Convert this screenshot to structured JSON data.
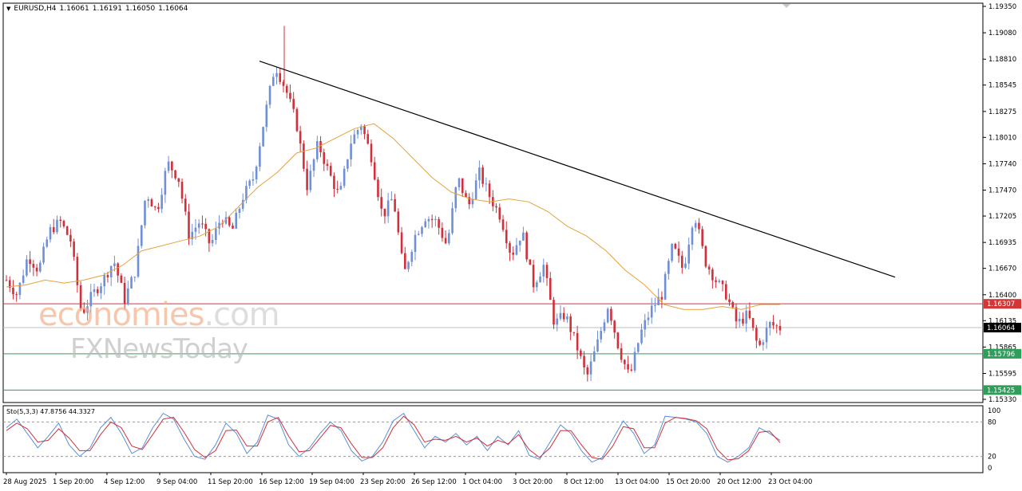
{
  "header": {
    "symbol": "EURUSD,H4",
    "open": "1.16061",
    "high": "1.16191",
    "low": "1.16050",
    "close": "1.16064"
  },
  "watermark": {
    "brand1_main": "economies",
    "brand1_suffix": ".com",
    "brand2": "FXNewsToday"
  },
  "oscillator": {
    "label": "Sto(5,3,3) 47.8756 44.3327",
    "levels": [
      "100",
      "80",
      "20",
      "0"
    ]
  },
  "colors": {
    "bull": "#6f8fd6",
    "bear": "#d1303a",
    "ma": "#e6a23c",
    "trendline": "#000000",
    "resistance": "#d33636",
    "support": "#2e9e5a",
    "stoch_main": "#5b8fd9",
    "stoch_signal": "#d1303a",
    "current": "#000000"
  },
  "chart_data": {
    "type": "candlestick",
    "title": "EURUSD,H4",
    "ylim": [
      1.1533,
      1.1935
    ],
    "y_ticks": [
      "1.19350",
      "1.19080",
      "1.18810",
      "1.18545",
      "1.18275",
      "1.18010",
      "1.17740",
      "1.17470",
      "1.17205",
      "1.16935",
      "1.16670",
      "1.16400",
      "1.16135",
      "1.15865",
      "1.15595",
      "1.15330"
    ],
    "x_labels": [
      "28 Aug 2025",
      "1 Sep 20:00",
      "4 Sep 12:00",
      "9 Sep 04:00",
      "11 Sep 20:00",
      "16 Sep 12:00",
      "19 Sep 04:00",
      "23 Sep 20:00",
      "26 Sep 12:00",
      "1 Oct 04:00",
      "3 Oct 20:00",
      "8 Oct 12:00",
      "13 Oct 04:00",
      "15 Oct 20:00",
      "20 Oct 12:00",
      "23 Oct 04:00"
    ],
    "price_labels": {
      "resistance": "1.16307",
      "current": "1.16064",
      "support1": "1.15796",
      "support2": "1.15425"
    },
    "levels": {
      "resistance": 1.16307,
      "current": 1.16064,
      "support1": 1.15796,
      "support2": 1.15425
    },
    "trendline": [
      {
        "t": 0,
        "price": 1.1879
      },
      {
        "t": 1,
        "price": 1.1658
      }
    ],
    "price_path": [
      1.1655,
      1.164,
      1.168,
      1.1665,
      1.1705,
      1.1715,
      1.1695,
      1.162,
      1.164,
      1.1655,
      1.1675,
      1.1635,
      1.1665,
      1.1745,
      1.1725,
      1.1775,
      1.176,
      1.17,
      1.1715,
      1.169,
      1.172,
      1.1705,
      1.174,
      1.176,
      1.182,
      1.1875,
      1.185,
      1.1815,
      1.175,
      1.1795,
      1.1765,
      1.174,
      1.1795,
      1.1815,
      1.178,
      1.172,
      1.174,
      1.166,
      1.17,
      1.172,
      1.1715,
      1.169,
      1.176,
      1.173,
      1.1765,
      1.174,
      1.172,
      1.168,
      1.1705,
      1.165,
      1.167,
      1.161,
      1.162,
      1.159,
      1.1555,
      1.159,
      1.163,
      1.1585,
      1.1555,
      1.16,
      1.1625,
      1.164,
      1.169,
      1.1665,
      1.1725,
      1.1675,
      1.1655,
      1.164,
      1.161,
      1.162,
      1.1585,
      1.161,
      1.1606
    ],
    "ma_path": [
      1.1648,
      1.165,
      1.1655,
      1.1652,
      1.1655,
      1.166,
      1.167,
      1.1685,
      1.169,
      1.1695,
      1.17,
      1.171,
      1.173,
      1.175,
      1.1765,
      1.1785,
      1.179,
      1.18,
      1.181,
      1.1815,
      1.18,
      1.178,
      1.176,
      1.1745,
      1.1738,
      1.1735,
      1.1738,
      1.1735,
      1.1725,
      1.171,
      1.17,
      1.1685,
      1.1665,
      1.165,
      1.163,
      1.1625,
      1.1625,
      1.1628,
      1.1625,
      1.163,
      1.163
    ],
    "stoch_main": [
      70,
      85,
      60,
      35,
      55,
      78,
      40,
      20,
      35,
      70,
      88,
      60,
      25,
      35,
      70,
      95,
      85,
      50,
      20,
      15,
      40,
      78,
      60,
      25,
      45,
      92,
      85,
      40,
      20,
      35,
      60,
      80,
      65,
      30,
      12,
      20,
      45,
      82,
      95,
      65,
      35,
      55,
      45,
      60,
      40,
      55,
      30,
      55,
      40,
      65,
      22,
      15,
      45,
      75,
      60,
      30,
      10,
      18,
      50,
      82,
      60,
      25,
      40,
      90,
      88,
      85,
      80,
      60,
      20,
      10,
      20,
      35,
      70,
      60,
      48
    ],
    "stoch_signal": [
      65,
      78,
      68,
      45,
      48,
      68,
      52,
      30,
      30,
      58,
      80,
      70,
      38,
      32,
      58,
      85,
      88,
      62,
      32,
      18,
      30,
      65,
      66,
      38,
      38,
      80,
      88,
      55,
      28,
      30,
      52,
      74,
      70,
      42,
      18,
      18,
      35,
      70,
      90,
      75,
      45,
      50,
      48,
      55,
      45,
      52,
      38,
      48,
      42,
      58,
      32,
      18,
      35,
      65,
      65,
      40,
      18,
      15,
      38,
      72,
      68,
      35,
      35,
      78,
      88,
      86,
      82,
      68,
      32,
      14,
      16,
      30,
      62,
      64,
      44
    ]
  }
}
